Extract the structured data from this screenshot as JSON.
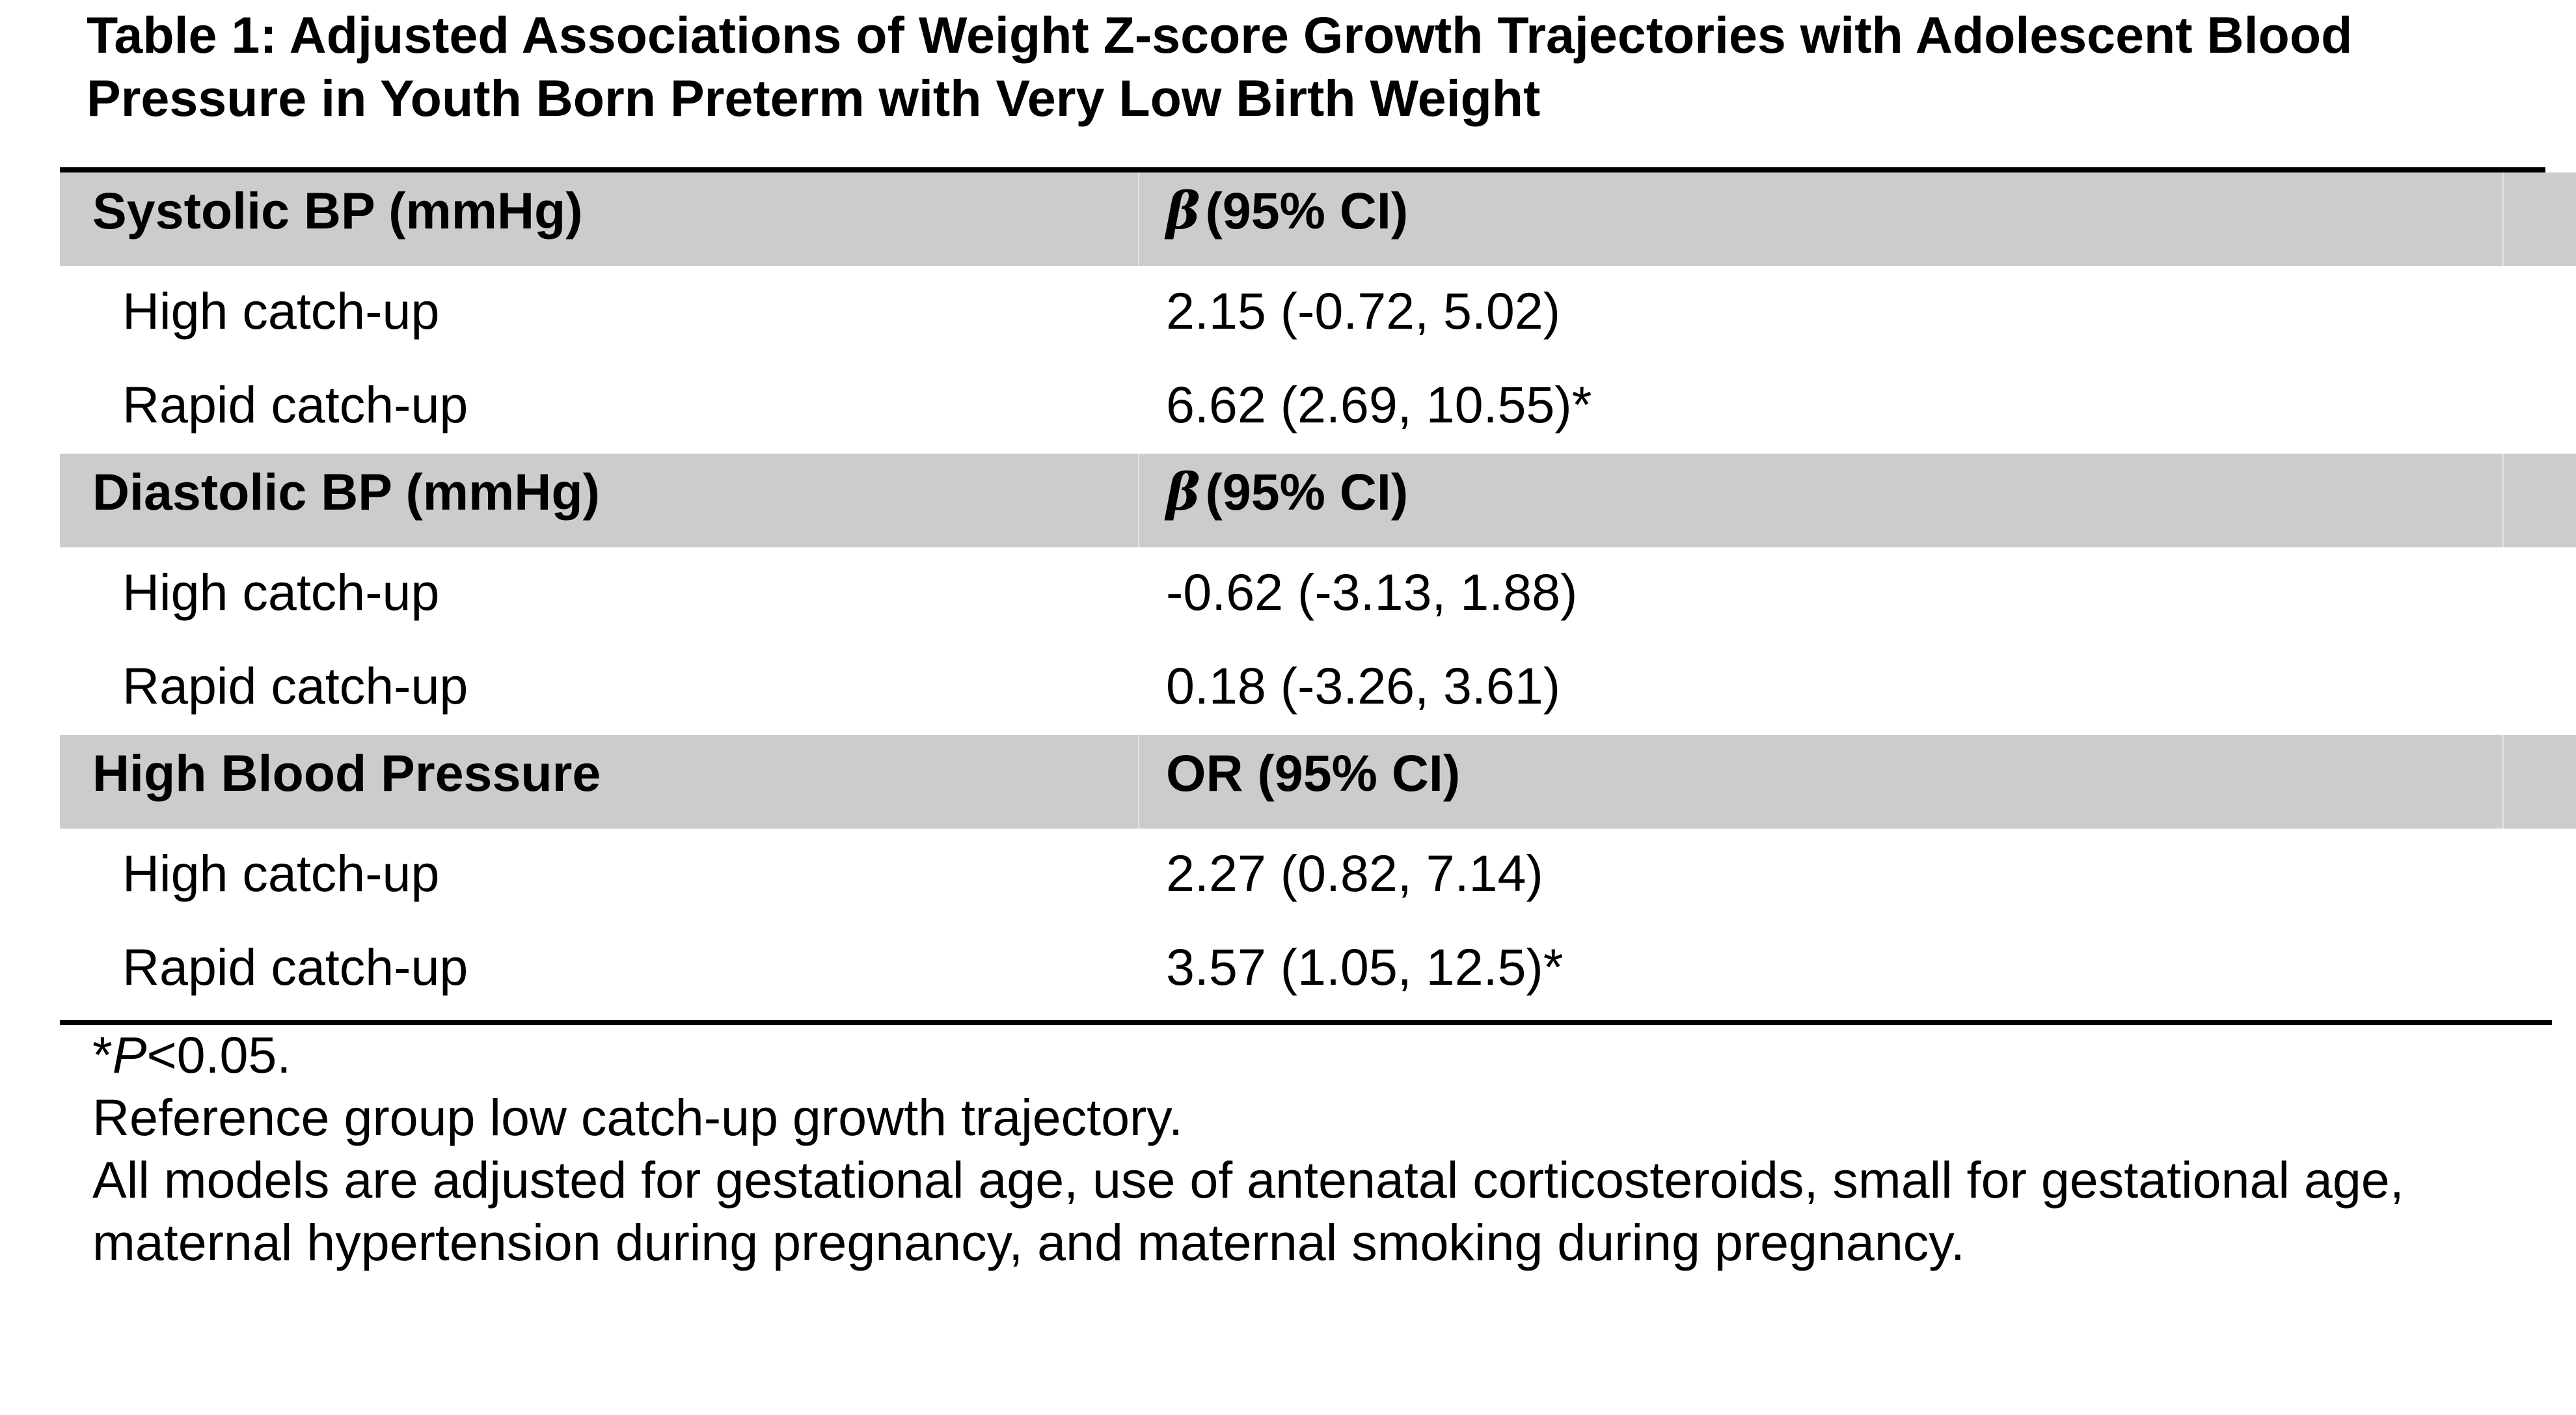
{
  "title": "Table 1: Adjusted Associations of Weight Z-score Growth Trajectories with Adolescent Blood Pressure in Youth Born Preterm with Very Low Birth Weight",
  "sections": [
    {
      "label": "Systolic BP (mmHg)",
      "stat_symbol": "β",
      "stat_label": "(95% CI)",
      "rows": [
        {
          "label": "High catch-up",
          "value": "2.15 (-0.72, 5.02)"
        },
        {
          "label": "Rapid catch-up",
          "value": "6.62 (2.69, 10.55)*"
        }
      ]
    },
    {
      "label": "Diastolic BP (mmHg)",
      "stat_symbol": "β",
      "stat_label": "(95% CI)",
      "rows": [
        {
          "label": "High catch-up",
          "value": "-0.62 (-3.13, 1.88)"
        },
        {
          "label": "Rapid catch-up",
          "value": "0.18 (-3.26, 3.61)"
        }
      ]
    },
    {
      "label": "High Blood Pressure",
      "stat_symbol": "",
      "stat_label": "OR (95% CI)",
      "rows": [
        {
          "label": "High catch-up",
          "value": "2.27 (0.82, 7.14)"
        },
        {
          "label": "Rapid catch-up",
          "value": "3.57 (1.05, 12.5)*"
        }
      ]
    }
  ],
  "footnotes": {
    "significance_prefix": "*",
    "significance_p": "P",
    "significance_rest": "<0.05.",
    "reference": "Reference group low catch-up growth trajectory.",
    "adjustment": "All models are adjusted for gestational age, use of antenatal corticosteroids, small for gestational age, maternal hypertension during pregnancy, and maternal smoking during pregnancy."
  }
}
